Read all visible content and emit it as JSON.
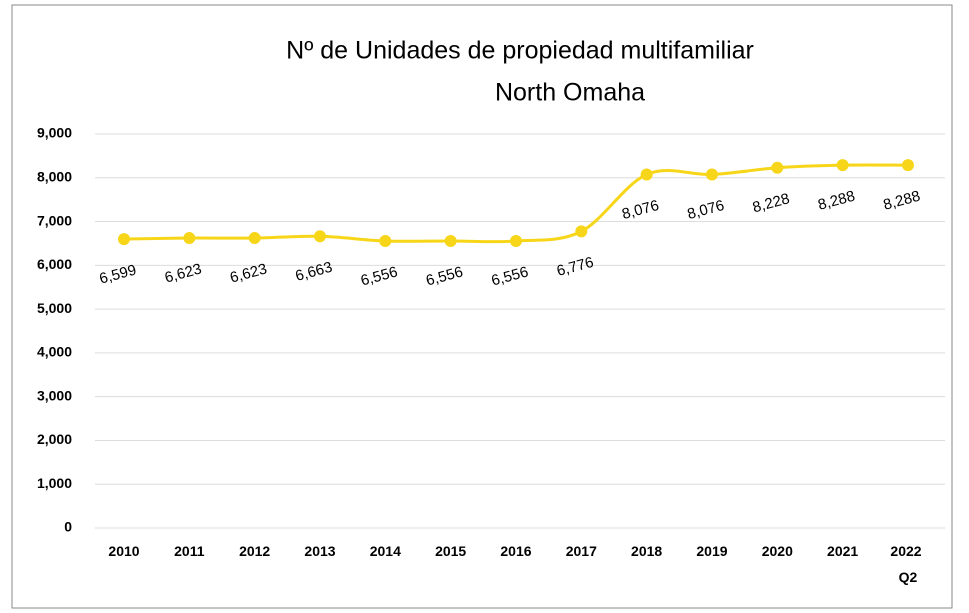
{
  "chart_data": {
    "type": "line",
    "title": [
      "Nº de Unidades de propiedad multifamiliar",
      "North Omaha"
    ],
    "categories": [
      "2010",
      "2011",
      "2012",
      "2013",
      "2014",
      "2015",
      "2016",
      "2017",
      "2018",
      "2019",
      "2020",
      "2021",
      "2022 Q2"
    ],
    "series": [
      {
        "name": "North Omaha",
        "color": "#f7d619",
        "values": [
          6599,
          6623,
          6623,
          6663,
          6556,
          6556,
          6556,
          6776,
          8076,
          8076,
          8228,
          8288,
          8288
        ],
        "value_labels": [
          "6,599",
          "6,623",
          "6,623",
          "6,663",
          "6,556",
          "6,556",
          "6,556",
          "6,776",
          "8,076",
          "8,076",
          "8,228",
          "8,288",
          "8,288"
        ]
      }
    ],
    "ylim": [
      0,
      9000
    ],
    "yticks": [
      0,
      {
        "value": 1000,
        "label": "1,000"
      },
      {
        "value": 2000,
        "label": "2,000"
      },
      {
        "value": 3000,
        "label": "3,000"
      },
      {
        "value": 4000,
        "label": "4,000"
      },
      {
        "value": 5000,
        "label": "5,000"
      },
      {
        "value": 6000,
        "label": "6,000"
      },
      {
        "value": 7000,
        "label": "7,000"
      },
      {
        "value": 8000,
        "label": "8,000"
      },
      {
        "value": 9000,
        "label": "9,000"
      }
    ],
    "grid": true
  }
}
